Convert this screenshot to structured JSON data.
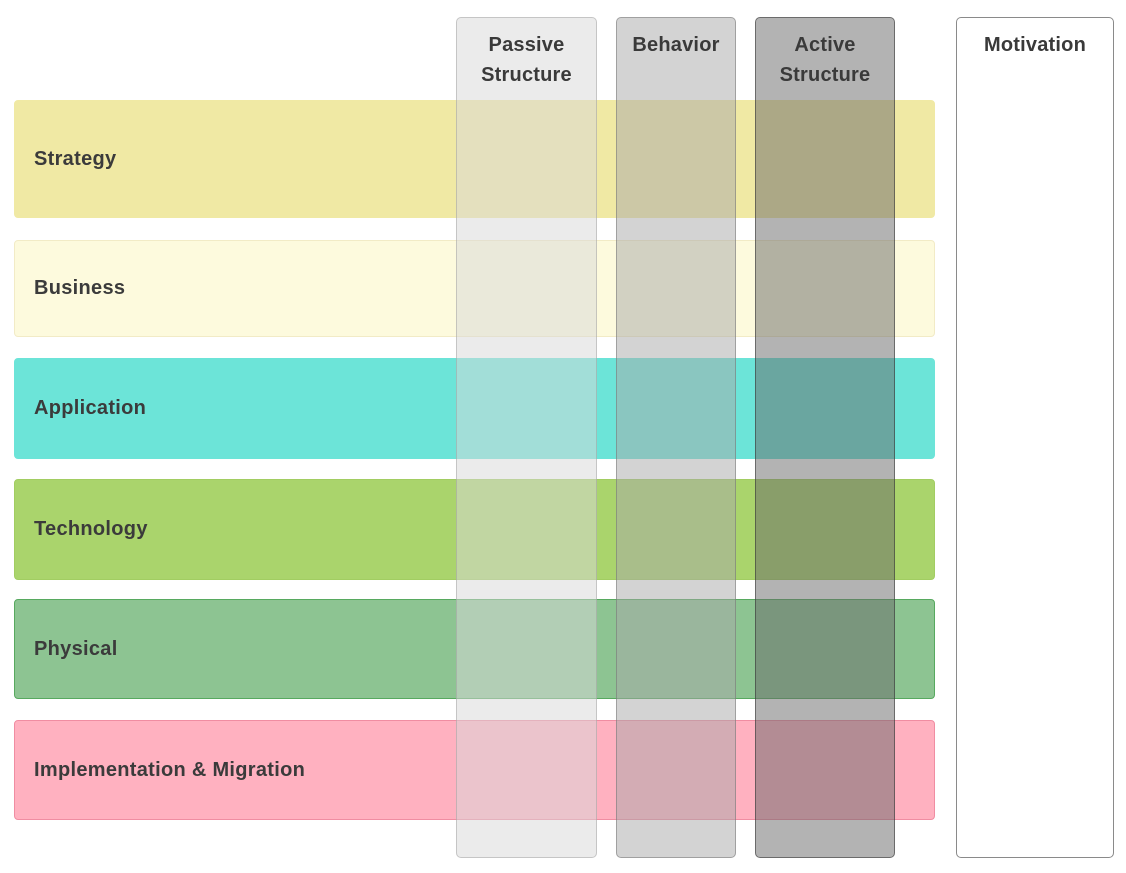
{
  "diagram_text_color": "#3b3b3b",
  "layers": [
    {
      "label": "Strategy",
      "fill": "#f0e9a4",
      "border": "#f0e9a4"
    },
    {
      "label": "Business",
      "fill": "#fdfadd",
      "border": "#f2ebc6"
    },
    {
      "label": "Application",
      "fill": "#6ce4d8",
      "border": "#6ce4d8"
    },
    {
      "label": "Technology",
      "fill": "#aad46c",
      "border": "#a2cd62"
    },
    {
      "label": "Physical",
      "fill": "#8dc492",
      "border": "#57a95f"
    },
    {
      "label": "Implementation & Migration",
      "fill": "#ffb1c0",
      "border": "#f08da2"
    }
  ],
  "aspects": [
    {
      "label": "Passive Structure",
      "fill": "rgba(216,216,216,0.5)",
      "border": "rgba(150,150,150,0.45)"
    },
    {
      "label": "Behavior",
      "fill": "rgba(168,168,168,0.5)",
      "border": "rgba(110,110,110,0.5)"
    },
    {
      "label": "Active Structure",
      "fill": "rgba(103,103,103,0.5)",
      "border": "rgba(50,50,50,0.55)"
    },
    {
      "label": "Motivation",
      "fill": "#ffffff",
      "border": "#8a8a8a"
    }
  ]
}
